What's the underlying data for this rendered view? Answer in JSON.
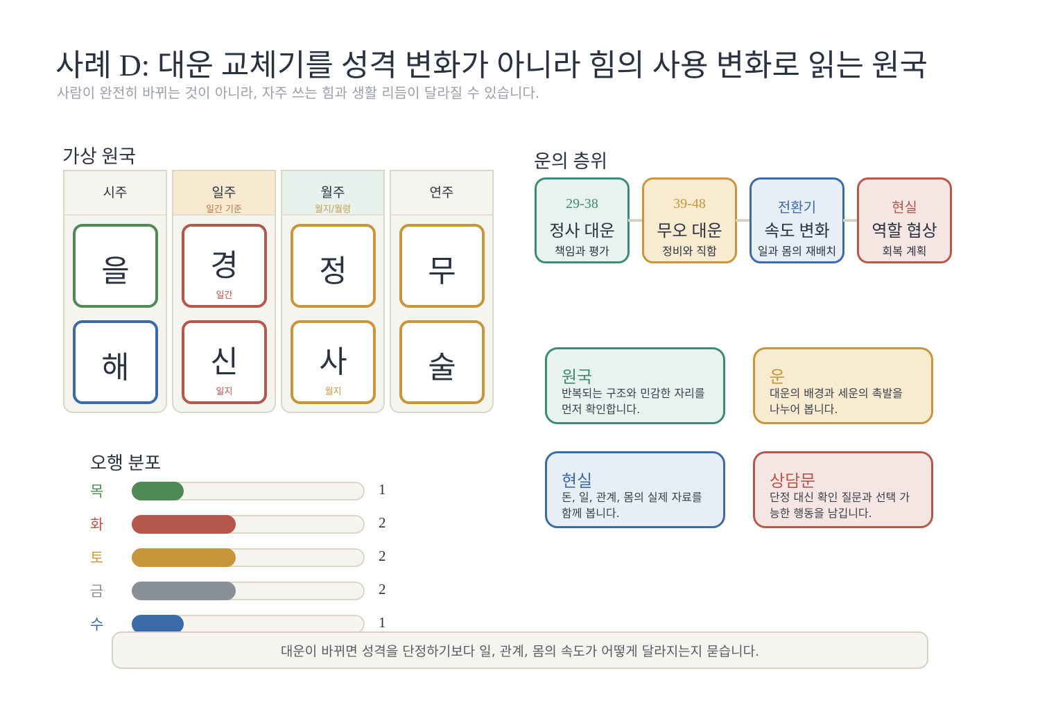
{
  "header": {
    "title": "사례 D: 대운 교체기를 성격 변화가 아니라 힘의 사용 변화로 읽는 원국",
    "subtitle": "사람이 완전히 바뀌는 것이 아니라, 자주 쓰는 힘과 생활 리듬이 달라질 수 있습니다."
  },
  "pillars": {
    "title": "가상 원국",
    "columns": [
      {
        "header": "시주",
        "stem": {
          "char": "을"
        },
        "branch": {
          "char": "해"
        }
      },
      {
        "header": "일주",
        "sub": "일간 기준",
        "stem": {
          "char": "경",
          "note": "일간"
        },
        "branch": {
          "char": "신",
          "note": "일지"
        }
      },
      {
        "header": "월주",
        "sub": "월지/월령",
        "stem": {
          "char": "정"
        },
        "branch": {
          "char": "사",
          "note": "월지"
        }
      },
      {
        "header": "연주",
        "stem": {
          "char": "무"
        },
        "branch": {
          "char": "술"
        }
      }
    ]
  },
  "luck": {
    "title": "운의 층위",
    "steps": [
      {
        "label": "29-38",
        "name": "정사 대운",
        "desc": "책임과 평가"
      },
      {
        "label": "39-48",
        "name": "무오 대운",
        "desc": "정비와 직함"
      },
      {
        "label": "전환기",
        "name": "속도 변화",
        "desc": "일과 몸의 재배치"
      },
      {
        "label": "현실",
        "name": "역할 협상",
        "desc": "회복 계획"
      }
    ]
  },
  "legend": [
    {
      "title": "원국",
      "text": "반복되는 구조와 민감한 자리를 먼저 확인합니다."
    },
    {
      "title": "운",
      "text": "대운의 배경과 세운의 촉발을 나누어 봅니다."
    },
    {
      "title": "현실",
      "text": "돈, 일, 관계, 몸의 실제 자료를 함께 봅니다."
    },
    {
      "title": "상담문",
      "text": "단정 대신 확인 질문과 선택 가능한 행동을 남깁니다."
    }
  ],
  "elements": {
    "title": "오행 분포",
    "rows": [
      {
        "name": "목",
        "value": 1
      },
      {
        "name": "화",
        "value": 2
      },
      {
        "name": "토",
        "value": 2
      },
      {
        "name": "금",
        "value": 2
      },
      {
        "name": "수",
        "value": 1
      }
    ]
  },
  "footer": "대운이 바뀌면 성격을 단정하기보다 일, 관계, 몸의 속도가 어떻게 달라지는지 묻습니다."
}
